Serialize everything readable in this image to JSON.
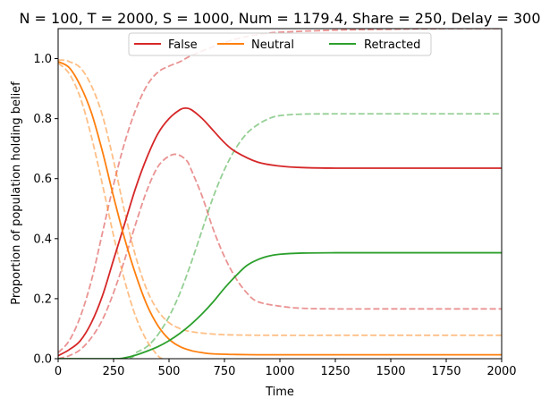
{
  "chart_data": {
    "type": "line",
    "title": "N = 100, T = 2000, S = 1000, Num = 1179.4, Share = 250, Delay = 300",
    "xlabel": "Time",
    "ylabel": "Proportion of population holding belief",
    "xlim": [
      0,
      2000
    ],
    "ylim": [
      0,
      1.1
    ],
    "xticks": [
      0,
      250,
      500,
      750,
      1000,
      1250,
      1500,
      1750,
      2000
    ],
    "yticks": [
      0.0,
      0.2,
      0.4,
      0.6,
      0.8,
      1.0
    ],
    "xtick_labels": [
      "0",
      "250",
      "500",
      "750",
      "1000",
      "1250",
      "1500",
      "1750",
      "2000"
    ],
    "ytick_labels": [
      "0.0",
      "0.2",
      "0.4",
      "0.6",
      "0.8",
      "1.0"
    ],
    "grid": false,
    "legend": {
      "placement": "top-center",
      "entries": [
        {
          "label": "False",
          "color": "#d62728"
        },
        {
          "label": "Neutral",
          "color": "#ff7f0e"
        },
        {
          "label": "Retracted",
          "color": "#2ca02c"
        }
      ]
    },
    "series": [
      {
        "name": "False",
        "style": "solid",
        "color": "#d62728",
        "x": [
          0,
          50,
          100,
          150,
          200,
          250,
          300,
          350,
          400,
          450,
          500,
          550,
          575,
          600,
          650,
          700,
          750,
          800,
          900,
          1000,
          1100,
          1250,
          1500,
          1750,
          2000
        ],
        "y": [
          0.01,
          0.03,
          0.06,
          0.12,
          0.21,
          0.33,
          0.45,
          0.57,
          0.67,
          0.75,
          0.8,
          0.83,
          0.835,
          0.83,
          0.8,
          0.76,
          0.72,
          0.69,
          0.655,
          0.642,
          0.637,
          0.635,
          0.635,
          0.635,
          0.635
        ]
      },
      {
        "name": "Neutral",
        "style": "solid",
        "color": "#ff7f0e",
        "x": [
          0,
          50,
          100,
          150,
          200,
          250,
          300,
          350,
          400,
          450,
          500,
          550,
          600,
          650,
          700,
          800,
          900,
          1000,
          1250,
          1500,
          1750,
          2000
        ],
        "y": [
          0.99,
          0.97,
          0.91,
          0.82,
          0.69,
          0.54,
          0.4,
          0.28,
          0.18,
          0.11,
          0.065,
          0.04,
          0.027,
          0.02,
          0.016,
          0.014,
          0.013,
          0.013,
          0.013,
          0.013,
          0.013,
          0.013
        ]
      },
      {
        "name": "Retracted",
        "style": "solid",
        "color": "#2ca02c",
        "x": [
          0,
          250,
          300,
          350,
          400,
          450,
          500,
          550,
          600,
          650,
          700,
          750,
          800,
          850,
          900,
          950,
          1000,
          1100,
          1250,
          1500,
          1750,
          2000
        ],
        "y": [
          0.0,
          0.0,
          0.003,
          0.012,
          0.025,
          0.04,
          0.06,
          0.085,
          0.115,
          0.15,
          0.19,
          0.235,
          0.275,
          0.31,
          0.33,
          0.342,
          0.348,
          0.352,
          0.353,
          0.353,
          0.353,
          0.353
        ]
      },
      {
        "style": "dashed",
        "color": "#d62728",
        "x": [
          0,
          50,
          100,
          150,
          200,
          250,
          300,
          350,
          400,
          450,
          500,
          550,
          600,
          700,
          800,
          900,
          1000,
          1250,
          1500,
          1750,
          2000
        ],
        "y": [
          0.02,
          0.06,
          0.14,
          0.26,
          0.42,
          0.58,
          0.72,
          0.83,
          0.91,
          0.955,
          0.975,
          0.99,
          1.01,
          1.04,
          1.065,
          1.08,
          1.088,
          1.095,
          1.098,
          1.1,
          1.1
        ]
      },
      {
        "style": "dashed",
        "color": "#d62728",
        "x": [
          0,
          50,
          100,
          150,
          200,
          250,
          300,
          350,
          400,
          450,
          500,
          540,
          580,
          600,
          650,
          700,
          750,
          800,
          850,
          900,
          1000,
          1100,
          1250,
          1500,
          2000
        ],
        "y": [
          0.0,
          0.01,
          0.03,
          0.07,
          0.13,
          0.22,
          0.33,
          0.45,
          0.56,
          0.64,
          0.675,
          0.68,
          0.66,
          0.63,
          0.54,
          0.43,
          0.34,
          0.27,
          0.22,
          0.19,
          0.175,
          0.168,
          0.166,
          0.166,
          0.166
        ]
      },
      {
        "style": "dashed",
        "color": "#ff7f0e",
        "x": [
          0,
          25,
          50,
          100,
          150,
          200,
          250,
          300,
          350,
          400,
          450,
          500,
          550,
          600,
          700,
          800,
          1000,
          1250,
          1500,
          2000
        ],
        "y": [
          0.995,
          0.995,
          0.99,
          0.97,
          0.91,
          0.81,
          0.66,
          0.49,
          0.34,
          0.23,
          0.16,
          0.12,
          0.1,
          0.09,
          0.082,
          0.079,
          0.078,
          0.078,
          0.078,
          0.078
        ]
      },
      {
        "style": "dashed",
        "color": "#ff7f0e",
        "x": [
          0,
          50,
          100,
          150,
          200,
          250,
          300,
          350,
          400,
          450,
          470
        ],
        "y": [
          0.985,
          0.95,
          0.87,
          0.74,
          0.58,
          0.41,
          0.26,
          0.14,
          0.06,
          0.01,
          0.0
        ]
      },
      {
        "style": "dashed",
        "color": "#2ca02c",
        "x": [
          0,
          300,
          350,
          400,
          450,
          500,
          550,
          600,
          650,
          700,
          750,
          800,
          850,
          900,
          950,
          1000,
          1100,
          1250,
          1500,
          1750,
          2000
        ],
        "y": [
          0.0,
          0.0,
          0.02,
          0.04,
          0.08,
          0.14,
          0.22,
          0.32,
          0.43,
          0.54,
          0.63,
          0.7,
          0.75,
          0.78,
          0.8,
          0.81,
          0.815,
          0.816,
          0.816,
          0.816,
          0.816
        ]
      }
    ]
  }
}
